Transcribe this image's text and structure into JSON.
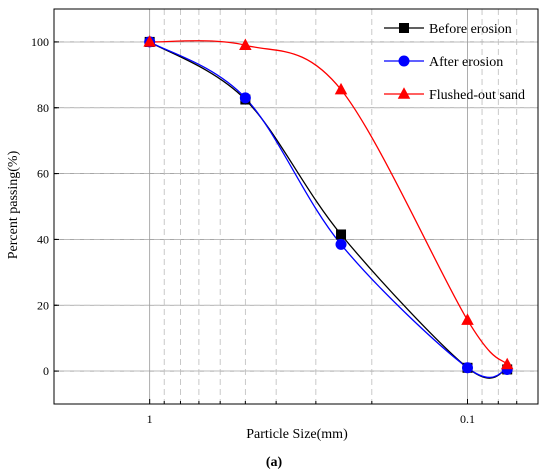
{
  "chart_data": {
    "type": "line",
    "xlabel": "Particle Size(mm)",
    "ylabel": "Percent passing(%)",
    "panel_label": "(a)",
    "x_scale": "log",
    "x_reversed": true,
    "xlim": [
      2,
      0.06
    ],
    "ylim": [
      -10,
      110
    ],
    "x_ticks": [
      {
        "value": 1,
        "label": "1"
      },
      {
        "value": 0.1,
        "label": "0.1"
      }
    ],
    "y_ticks": [
      {
        "value": 0,
        "label": "0"
      },
      {
        "value": 20,
        "label": "20"
      },
      {
        "value": 40,
        "label": "40"
      },
      {
        "value": 60,
        "label": "60"
      },
      {
        "value": 80,
        "label": "80"
      },
      {
        "value": 100,
        "label": "100"
      }
    ],
    "grid": true,
    "legend_position": "top-right",
    "series": [
      {
        "name": "Before erosion",
        "color": "#000000",
        "marker": "square",
        "x": [
          1,
          0.5,
          0.25,
          0.1,
          0.075
        ],
        "y": [
          100,
          82.5,
          41.5,
          1,
          0.5
        ]
      },
      {
        "name": "After erosion",
        "color": "#0000ff",
        "marker": "circle",
        "x": [
          1,
          0.5,
          0.25,
          0.1,
          0.075
        ],
        "y": [
          100,
          83,
          38.5,
          1,
          0.5
        ]
      },
      {
        "name": "Flushed-out sand",
        "color": "#ff0000",
        "marker": "triangle",
        "x": [
          1,
          0.5,
          0.25,
          0.1,
          0.075
        ],
        "y": [
          100,
          99,
          85.5,
          15.5,
          2
        ]
      }
    ]
  }
}
